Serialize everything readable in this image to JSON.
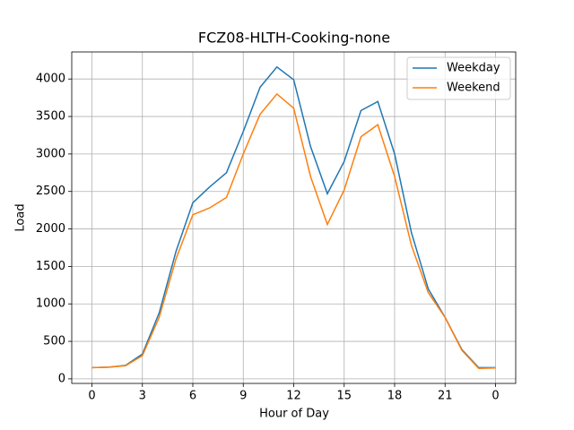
{
  "chart_data": {
    "type": "line",
    "title": "FCZ08-HLTH-Cooking-none",
    "x_label": "Hour of Day",
    "y_label": "Load",
    "x": [
      0,
      1,
      2,
      3,
      4,
      5,
      6,
      7,
      8,
      9,
      10,
      11,
      12,
      13,
      14,
      15,
      16,
      17,
      18,
      19,
      20,
      21,
      22,
      23,
      24
    ],
    "series": [
      {
        "name": "Weekday",
        "color": "#1f77b4",
        "values": [
          150,
          155,
          180,
          330,
          880,
          1700,
          2350,
          2560,
          2750,
          3300,
          3890,
          4160,
          3990,
          3100,
          2470,
          2900,
          3580,
          3700,
          3000,
          1950,
          1200,
          820,
          390,
          150,
          150
        ]
      },
      {
        "name": "Weekend",
        "color": "#ff7f0e",
        "values": [
          150,
          155,
          175,
          310,
          820,
          1600,
          2190,
          2280,
          2420,
          3000,
          3530,
          3800,
          3610,
          2700,
          2060,
          2520,
          3230,
          3390,
          2700,
          1780,
          1150,
          820,
          380,
          140,
          145
        ]
      }
    ],
    "xlim": [
      -1.2,
      25.2
    ],
    "xticks": [
      0,
      3,
      6,
      9,
      12,
      15,
      18,
      21,
      {
        "value": 24,
        "label": "0"
      }
    ],
    "ylim": [
      -61,
      4361
    ],
    "yticks": [
      0,
      500,
      1000,
      1500,
      2000,
      2500,
      3000,
      3500,
      4000
    ],
    "grid": true,
    "legend": "upper right"
  }
}
